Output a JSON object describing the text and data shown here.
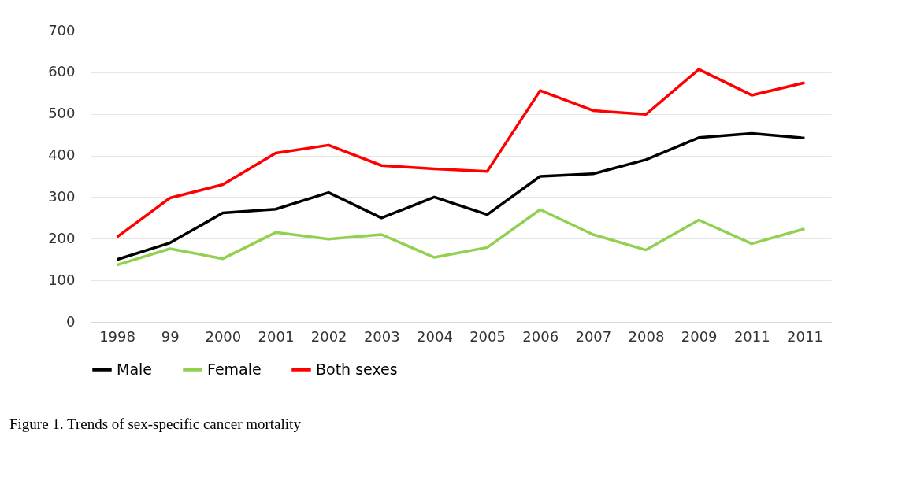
{
  "chart_data": {
    "type": "line",
    "categories": [
      "1998",
      "99",
      "2000",
      "2001",
      "2002",
      "2003",
      "2004",
      "2005",
      "2006",
      "2007",
      "2008",
      "2009",
      "2011",
      "2011"
    ],
    "series": [
      {
        "name": "Male",
        "color": "#000000",
        "values": [
          150,
          190,
          262,
          271,
          311,
          250,
          300,
          258,
          350,
          356,
          390,
          443,
          453,
          442
        ]
      },
      {
        "name": "Female",
        "color": "#92d050",
        "values": [
          137,
          176,
          152,
          215,
          199,
          210,
          155,
          179,
          270,
          210,
          173,
          245,
          188,
          224
        ]
      },
      {
        "name": "Both sexes",
        "color": "#ff0000",
        "values": [
          204,
          298,
          330,
          406,
          425,
          376,
          368,
          362,
          556,
          508,
          499,
          607,
          545,
          575
        ]
      }
    ],
    "ylim": [
      0,
      700
    ],
    "yticks": [
      0,
      100,
      200,
      300,
      400,
      500,
      600,
      700
    ],
    "grid": "y",
    "legend": "bottom",
    "marker": "none",
    "annotations": [
      "Figure 1. Trends of sex-specific cancer mortality"
    ]
  }
}
